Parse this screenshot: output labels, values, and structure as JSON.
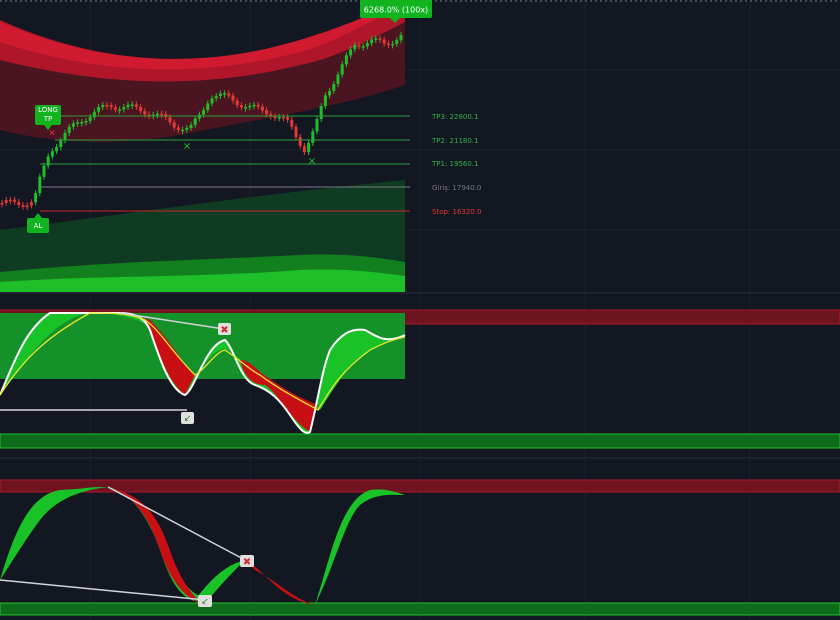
{
  "signals": {
    "long_tp": [
      "LONG",
      "TP"
    ],
    "buy": "AL",
    "short_tp": "6268.0% (100x)"
  },
  "levels": [
    "TP3: 22800.1",
    "TP2: 21180.1",
    "TP1: 19560.1",
    "Giriş: 17940.0",
    "Stop: 16320.0"
  ]
}
